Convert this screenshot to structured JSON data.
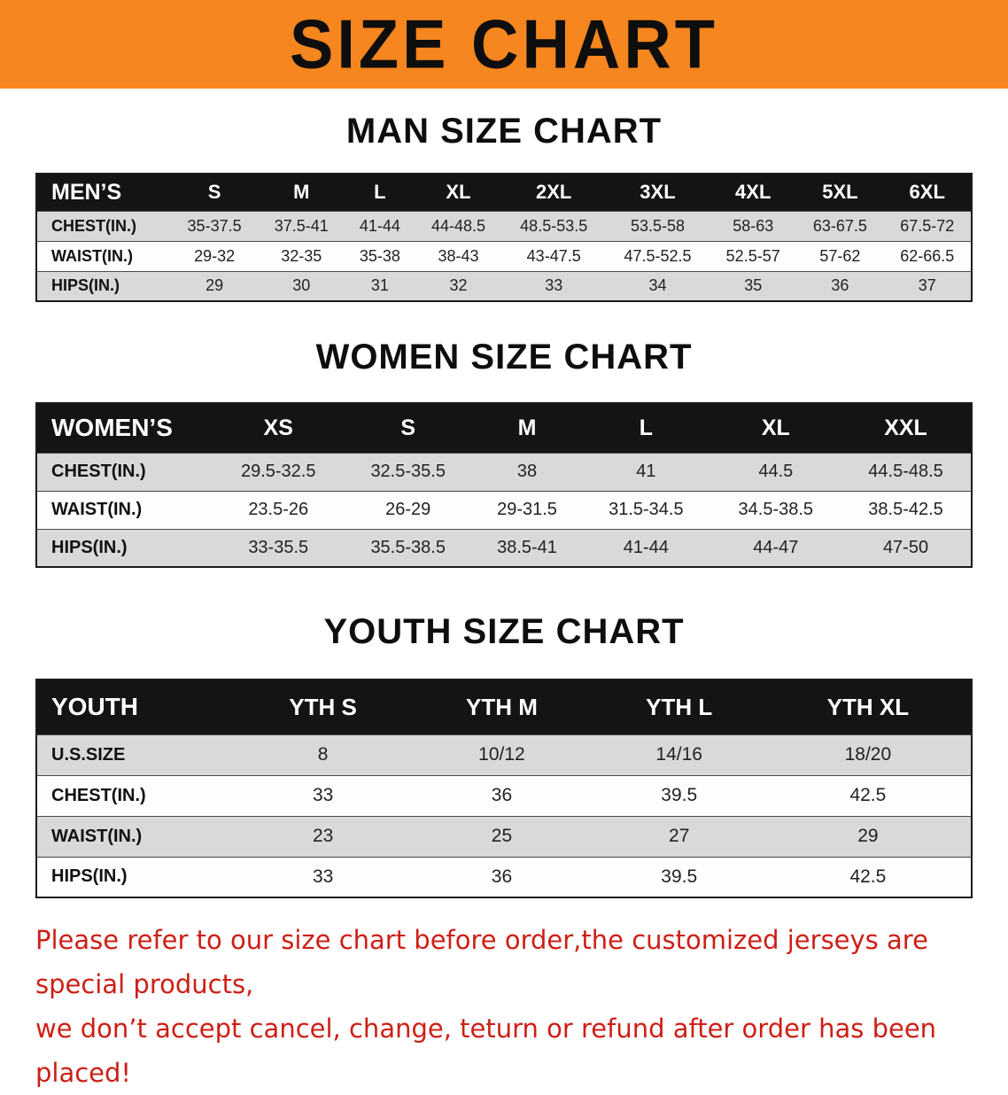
{
  "banner": {
    "title": "SIZE CHART"
  },
  "sections": [
    {
      "heading": "MAN SIZE CHART",
      "table": {
        "header": [
          "MEN’S",
          "S",
          "M",
          "L",
          "XL",
          "2XL",
          "3XL",
          "4XL",
          "5XL",
          "6XL"
        ],
        "rows": [
          {
            "label": "CHEST(IN.)",
            "values": [
              "35-37.5",
              "37.5-41",
              "41-44",
              "44-48.5",
              "48.5-53.5",
              "53.5-58",
              "58-63",
              "63-67.5",
              "67.5-72"
            ]
          },
          {
            "label": "WAIST(IN.)",
            "values": [
              "29-32",
              "32-35",
              "35-38",
              "38-43",
              "43-47.5",
              "47.5-52.5",
              "52.5-57",
              "57-62",
              "62-66.5"
            ]
          },
          {
            "label": "HIPS(IN.)",
            "values": [
              "29",
              "30",
              "31",
              "32",
              "33",
              "34",
              "35",
              "36",
              "37"
            ]
          }
        ]
      }
    },
    {
      "heading": "WOMEN SIZE CHART",
      "table": {
        "header": [
          "WOMEN’S",
          "XS",
          "S",
          "M",
          "L",
          "XL",
          "XXL"
        ],
        "rows": [
          {
            "label": "CHEST(IN.)",
            "values": [
              "29.5-32.5",
              "32.5-35.5",
              "38",
              "41",
              "44.5",
              "44.5-48.5"
            ]
          },
          {
            "label": "WAIST(IN.)",
            "values": [
              "23.5-26",
              "26-29",
              "29-31.5",
              "31.5-34.5",
              "34.5-38.5",
              "38.5-42.5"
            ]
          },
          {
            "label": "HIPS(IN.)",
            "values": [
              "33-35.5",
              "35.5-38.5",
              "38.5-41",
              "41-44",
              "44-47",
              "47-50"
            ]
          }
        ]
      }
    },
    {
      "heading": "YOUTH SIZE CHART",
      "table": {
        "header": [
          "YOUTH",
          "YTH S",
          "YTH M",
          "YTH L",
          "YTH XL"
        ],
        "rows": [
          {
            "label": "U.S.SIZE",
            "values": [
              "8",
              "10/12",
              "14/16",
              "18/20"
            ]
          },
          {
            "label": "CHEST(IN.)",
            "values": [
              "33",
              "36",
              "39.5",
              "42.5"
            ]
          },
          {
            "label": "WAIST(IN.)",
            "values": [
              "23",
              "25",
              "27",
              "29"
            ]
          },
          {
            "label": "HIPS(IN.)",
            "values": [
              "33",
              "36",
              "39.5",
              "42.5"
            ]
          }
        ]
      }
    }
  ],
  "footer": {
    "text_line1": "Please refer to our size chart before order,the customized jerseys are special products,",
    "text_line2": "we don’t accept cancel, change, teturn or refund after order has been placed!"
  },
  "colors": {
    "banner_orange": "#f6861f",
    "header_black": "#141414",
    "row_gray": "#d9d9d9",
    "footer_red": "#cd1f16"
  }
}
